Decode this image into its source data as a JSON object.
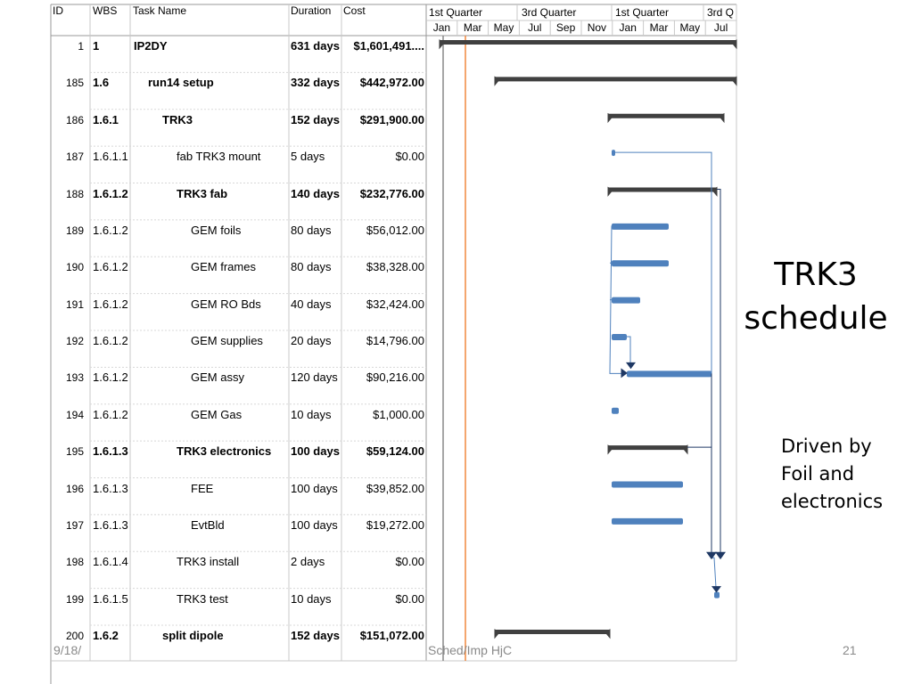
{
  "table": {
    "headers": {
      "id": "ID",
      "wbs": "WBS",
      "name": "Task Name",
      "duration": "Duration",
      "cost": "Cost"
    },
    "rows": [
      {
        "id": "1",
        "wbs": "1",
        "name": "IP2DY",
        "duration": "631 days",
        "cost": "$1,601,491....",
        "bold": true,
        "indent": 0
      },
      {
        "id": "185",
        "wbs": "1.6",
        "name": "run14 setup",
        "duration": "332 days",
        "cost": "$442,972.00",
        "bold": true,
        "indent": 1
      },
      {
        "id": "186",
        "wbs": "1.6.1",
        "name": "TRK3",
        "duration": "152 days",
        "cost": "$291,900.00",
        "bold": true,
        "indent": 2
      },
      {
        "id": "187",
        "wbs": "1.6.1.1",
        "name": "fab TRK3 mount",
        "duration": "5 days",
        "cost": "$0.00",
        "bold": false,
        "indent": 3
      },
      {
        "id": "188",
        "wbs": "1.6.1.2",
        "name": "TRK3 fab",
        "duration": "140 days",
        "cost": "$232,776.00",
        "bold": true,
        "indent": 3
      },
      {
        "id": "189",
        "wbs": "1.6.1.2",
        "name": "GEM foils",
        "duration": "80 days",
        "cost": "$56,012.00",
        "bold": false,
        "indent": 4
      },
      {
        "id": "190",
        "wbs": "1.6.1.2",
        "name": "GEM frames",
        "duration": "80 days",
        "cost": "$38,328.00",
        "bold": false,
        "indent": 4
      },
      {
        "id": "191",
        "wbs": "1.6.1.2",
        "name": "GEM RO Bds",
        "duration": "40 days",
        "cost": "$32,424.00",
        "bold": false,
        "indent": 4
      },
      {
        "id": "192",
        "wbs": "1.6.1.2",
        "name": "GEM supplies",
        "duration": "20 days",
        "cost": "$14,796.00",
        "bold": false,
        "indent": 4
      },
      {
        "id": "193",
        "wbs": "1.6.1.2",
        "name": "GEM assy",
        "duration": "120 days",
        "cost": "$90,216.00",
        "bold": false,
        "indent": 4
      },
      {
        "id": "194",
        "wbs": "1.6.1.2",
        "name": "GEM Gas",
        "duration": "10 days",
        "cost": "$1,000.00",
        "bold": false,
        "indent": 4
      },
      {
        "id": "195",
        "wbs": "1.6.1.3",
        "name": "TRK3 electronics",
        "duration": "100 days",
        "cost": "$59,124.00",
        "bold": true,
        "indent": 3
      },
      {
        "id": "196",
        "wbs": "1.6.1.3",
        "name": "FEE",
        "duration": "100 days",
        "cost": "$39,852.00",
        "bold": false,
        "indent": 4
      },
      {
        "id": "197",
        "wbs": "1.6.1.3",
        "name": "EvtBld",
        "duration": "100 days",
        "cost": "$19,272.00",
        "bold": false,
        "indent": 4
      },
      {
        "id": "198",
        "wbs": "1.6.1.4",
        "name": "TRK3 install",
        "duration": "2 days",
        "cost": "$0.00",
        "bold": false,
        "indent": 3
      },
      {
        "id": "199",
        "wbs": "1.6.1.5",
        "name": "TRK3 test",
        "duration": "10 days",
        "cost": "$0.00",
        "bold": false,
        "indent": 3
      },
      {
        "id": "200",
        "wbs": "1.6.2",
        "name": "split dipole",
        "duration": "152 days",
        "cost": "$151,072.00",
        "bold": true,
        "indent": 2
      }
    ]
  },
  "timeline": {
    "quarters": [
      "1st Quarter",
      "3rd Quarter",
      "1st Quarter",
      "3rd Q"
    ],
    "months": [
      "Jan",
      "Mar",
      "May",
      "Jul",
      "Sep",
      "Nov",
      "Jan",
      "Mar",
      "May",
      "Jul"
    ]
  },
  "slide": {
    "title": "TRK3 schedule",
    "note_lines": [
      "Driven by",
      "Foil and",
      "electronics"
    ],
    "footer_left": "9/18/",
    "footer_center": "Sched/Imp HjC",
    "page_number": "21"
  },
  "colors": {
    "task_bar": "#4f81bd",
    "summary_bar": "#404040",
    "today_line": "#f0883e",
    "grid_line": "#c8c8c8"
  }
}
